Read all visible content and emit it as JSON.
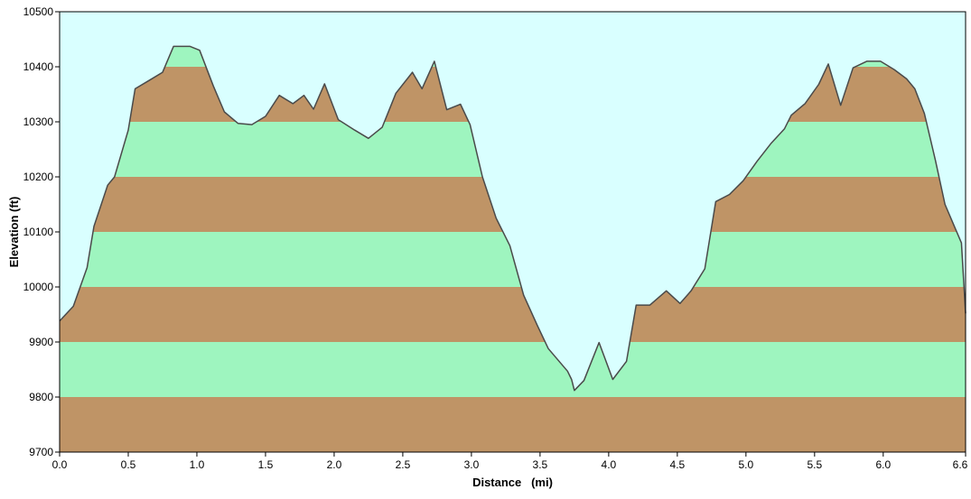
{
  "colors": {
    "background": "#ffffff",
    "sky": "#d9ffff",
    "band_brown": "#bf9466",
    "band_green": "#9ef5bf",
    "profile_line": "#4a4a4a",
    "axis": "#000000"
  },
  "chart_data": {
    "type": "area",
    "title": "",
    "xlabel": "Distance   (mi)",
    "ylabel": "Elevation (ft)",
    "xlim": [
      0,
      6.6
    ],
    "ylim": [
      9700,
      10500
    ],
    "x_ticks": [
      "0.0",
      "0.5",
      "1.0",
      "1.5",
      "2.0",
      "2.5",
      "3.0",
      "3.5",
      "4.0",
      "4.5",
      "5.0",
      "5.5",
      "6.0",
      "6.6"
    ],
    "x_tick_values": [
      0.0,
      0.5,
      1.0,
      1.5,
      2.0,
      2.5,
      3.0,
      3.5,
      4.0,
      4.5,
      5.0,
      5.5,
      6.0,
      6.6
    ],
    "y_ticks": [
      "9700",
      "9800",
      "9900",
      "10000",
      "10100",
      "10200",
      "10300",
      "10400",
      "10500"
    ],
    "y_tick_values": [
      9700,
      9800,
      9900,
      10000,
      10100,
      10200,
      10300,
      10400,
      10500
    ],
    "band_interval_ft": 100,
    "grid": false,
    "legend": "none",
    "series": [
      {
        "x": [
          0.0,
          0.1,
          0.2,
          0.25,
          0.35,
          0.4,
          0.5,
          0.55,
          0.65,
          0.75,
          0.83,
          0.95,
          1.02,
          1.12,
          1.2,
          1.3,
          1.4,
          1.5,
          1.6,
          1.7,
          1.78,
          1.85,
          1.93,
          2.03,
          2.15,
          2.25,
          2.35,
          2.45,
          2.57,
          2.64,
          2.73,
          2.82,
          2.92,
          2.99,
          3.08,
          3.18,
          3.28,
          3.38,
          3.48,
          3.56,
          3.7,
          3.73,
          3.75,
          3.82,
          3.93,
          4.03,
          4.13,
          4.2,
          4.3,
          4.42,
          4.52,
          4.6,
          4.7,
          4.78,
          4.88,
          4.98,
          5.08,
          5.18,
          5.28,
          5.33,
          5.43,
          5.53,
          5.6,
          5.69,
          5.78,
          5.88,
          5.98,
          6.08,
          6.17,
          6.23,
          6.3,
          6.38,
          6.45,
          6.57,
          6.6
        ],
        "y": [
          9938,
          9965,
          10035,
          10110,
          10185,
          10200,
          10285,
          10360,
          10375,
          10390,
          10437,
          10437,
          10430,
          10365,
          10318,
          10297,
          10295,
          10310,
          10348,
          10333,
          10348,
          10323,
          10369,
          10304,
          10285,
          10270,
          10290,
          10352,
          10390,
          10360,
          10410,
          10322,
          10332,
          10295,
          10200,
          10125,
          10075,
          9985,
          9930,
          9888,
          9847,
          9832,
          9812,
          9830,
          9899,
          9832,
          9865,
          9967,
          9967,
          9993,
          9970,
          9993,
          10033,
          10155,
          10168,
          10193,
          10228,
          10260,
          10287,
          10312,
          10333,
          10368,
          10405,
          10330,
          10398,
          10410,
          10410,
          10395,
          10378,
          10360,
          10315,
          10230,
          10150,
          10080,
          9952
        ]
      }
    ]
  }
}
